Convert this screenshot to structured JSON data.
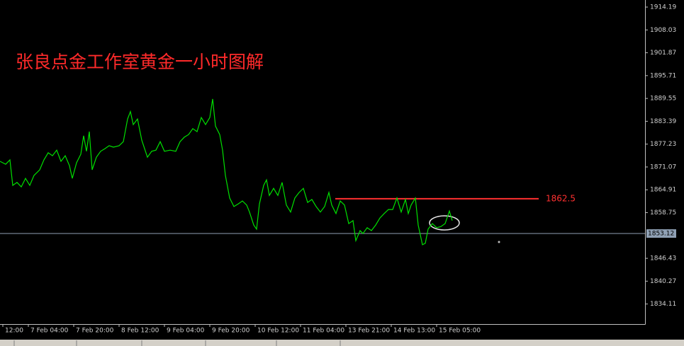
{
  "chart_data": {
    "type": "line",
    "title": "张良点金工作室黄金一小时图解",
    "x": [
      0,
      2,
      3.5,
      4.5,
      6,
      7.5,
      9,
      10.5,
      12,
      14,
      15.5,
      17,
      18.5,
      20,
      21.5,
      23,
      24.5,
      25.5,
      27,
      28.5,
      29.5,
      30.5,
      31.5,
      32.5,
      34,
      35.5,
      37,
      38.5,
      40,
      42,
      43.5,
      45,
      46,
      47,
      48.5,
      50,
      52,
      53.5,
      55,
      56.5,
      58,
      60,
      62,
      63.5,
      65,
      66.5,
      68,
      69.5,
      71,
      72.5,
      74,
      75,
      76,
      77.5,
      78.5,
      79.5,
      81,
      82.5,
      84,
      85.5,
      87,
      88,
      89.5,
      90.5,
      91.5,
      93,
      94,
      95,
      96.5,
      98,
      99.5,
      101,
      102.5,
      104,
      105.5,
      107,
      108.5,
      110,
      111.5,
      113,
      114.5,
      116,
      117,
      118.5,
      120,
      121.5,
      123,
      124.5,
      125.5,
      127,
      128,
      129.5,
      131,
      132.5,
      134,
      135.5,
      137,
      138.5,
      140,
      141.5,
      143,
      144,
      145,
      146.5,
      147.5,
      149,
      150,
      151,
      152.5,
      154,
      155.5,
      157,
      158.5,
      159.5
    ],
    "series": [
      {
        "color": "#00e000",
        "values": [
          1872.6,
          1871.8,
          1873.0,
          1866.1,
          1866.9,
          1865.7,
          1868.0,
          1866.1,
          1868.8,
          1870.3,
          1873.0,
          1874.9,
          1874.1,
          1875.6,
          1872.6,
          1874.1,
          1871.4,
          1868.0,
          1872.2,
          1874.5,
          1879.5,
          1875.3,
          1880.6,
          1870.3,
          1873.7,
          1875.3,
          1876.0,
          1876.8,
          1876.4,
          1876.8,
          1877.9,
          1884.0,
          1886.0,
          1882.5,
          1884.0,
          1878.3,
          1873.7,
          1875.3,
          1875.6,
          1877.9,
          1875.3,
          1875.6,
          1875.3,
          1877.9,
          1879.1,
          1879.8,
          1881.4,
          1880.6,
          1884.4,
          1882.5,
          1884.4,
          1889.4,
          1882.1,
          1879.8,
          1875.6,
          1868.8,
          1862.7,
          1860.4,
          1861.1,
          1861.9,
          1860.8,
          1858.9,
          1855.4,
          1854.3,
          1861.1,
          1866.1,
          1867.6,
          1863.4,
          1865.3,
          1863.4,
          1866.9,
          1860.8,
          1858.9,
          1862.7,
          1864.2,
          1865.3,
          1861.5,
          1862.3,
          1860.4,
          1858.9,
          1860.4,
          1864.2,
          1860.8,
          1858.5,
          1861.9,
          1860.8,
          1855.8,
          1856.6,
          1851.2,
          1853.9,
          1853.1,
          1854.7,
          1853.9,
          1855.4,
          1857.3,
          1858.5,
          1859.6,
          1859.6,
          1862.7,
          1858.9,
          1862.3,
          1858.5,
          1860.8,
          1862.7,
          1855.4,
          1850.1,
          1850.5,
          1854.3,
          1855.8,
          1854.7,
          1855.0,
          1855.8,
          1859.2,
          1856.6
        ]
      }
    ],
    "xlim": [
      0,
      227.5
    ],
    "xticks": [
      {
        "value": 1,
        "label": "12:00"
      },
      {
        "value": 10,
        "label": "7 Feb 04:00"
      },
      {
        "value": 26,
        "label": "7 Feb 20:00"
      },
      {
        "value": 42,
        "label": "8 Feb 12:00"
      },
      {
        "value": 58,
        "label": "9 Feb 04:00"
      },
      {
        "value": 74,
        "label": "9 Feb 20:00"
      },
      {
        "value": 90,
        "label": "10 Feb 12:00"
      },
      {
        "value": 106,
        "label": "11 Feb 04:00"
      },
      {
        "value": 122,
        "label": "13 Feb 21:00"
      },
      {
        "value": 138,
        "label": "14 Feb 13:00"
      },
      {
        "value": 154,
        "label": "15 Feb 05:00"
      }
    ],
    "ylim": [
      1828.7,
      1916.1
    ],
    "yticks": [
      1914.19,
      1908.03,
      1901.87,
      1895.71,
      1889.55,
      1883.39,
      1877.23,
      1871.07,
      1864.91,
      1858.75,
      1846.43,
      1840.27,
      1834.11
    ],
    "level_line": {
      "value": 1862.5,
      "label": "1862.5",
      "color": "#ff3030"
    },
    "current_price": {
      "value": 1853.12,
      "label": "1853.12",
      "color": "#8fa0b4"
    }
  }
}
